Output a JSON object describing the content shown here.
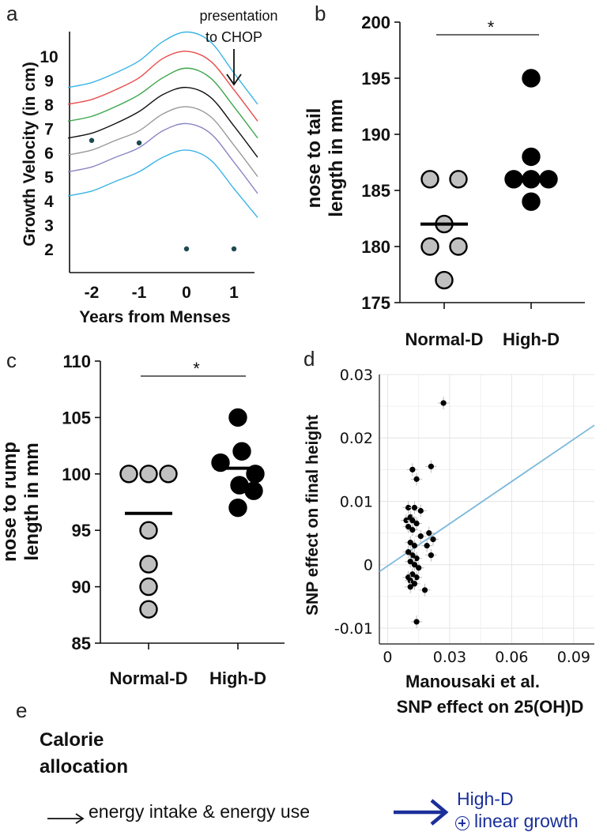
{
  "panels": {
    "a": "a",
    "b": "b",
    "c": "c",
    "d": "d",
    "e": "e"
  },
  "chart_data": [
    {
      "id": "a",
      "type": "line",
      "xlabel": "Years from Menses",
      "ylabel": "Growth Velocity (in cm)",
      "xticks": [
        "-2",
        "-1",
        "0",
        "1"
      ],
      "yticks": [
        "2",
        "3",
        "4",
        "5",
        "6",
        "7",
        "8",
        "9",
        "10"
      ],
      "x": [
        -2.5,
        -2.0,
        -1.5,
        -1.0,
        -0.5,
        0.0,
        0.5,
        1.0,
        1.5
      ],
      "series": [
        {
          "name": "curve-1",
          "color": "#3ab4e6",
          "values": [
            4.2,
            4.4,
            4.8,
            5.2,
            5.8,
            6.1,
            5.7,
            4.5,
            3.3
          ]
        },
        {
          "name": "curve-2",
          "color": "#8a86c4",
          "values": [
            5.2,
            5.4,
            5.8,
            6.2,
            6.9,
            7.2,
            6.8,
            5.6,
            4.3
          ]
        },
        {
          "name": "curve-3",
          "color": "#999999",
          "values": [
            5.9,
            6.1,
            6.5,
            6.9,
            7.6,
            7.9,
            7.5,
            6.3,
            5.0
          ]
        },
        {
          "name": "curve-4",
          "color": "#111111",
          "values": [
            6.6,
            6.8,
            7.2,
            7.7,
            8.4,
            8.7,
            8.3,
            7.1,
            5.8
          ]
        },
        {
          "name": "curve-5",
          "color": "#3aa64a",
          "values": [
            7.3,
            7.5,
            7.9,
            8.4,
            9.1,
            9.5,
            9.1,
            7.9,
            6.6
          ]
        },
        {
          "name": "curve-6",
          "color": "#e94a4a",
          "values": [
            8.0,
            8.2,
            8.6,
            9.1,
            9.9,
            10.2,
            9.8,
            8.6,
            7.3
          ]
        },
        {
          "name": "curve-7",
          "color": "#3ab4e6",
          "values": [
            8.7,
            8.9,
            9.3,
            9.8,
            10.6,
            11.0,
            10.6,
            9.3,
            8.0
          ]
        }
      ],
      "points": [
        {
          "x": -2.0,
          "y": 6.5
        },
        {
          "x": -1.0,
          "y": 6.4
        },
        {
          "x": 0.0,
          "y": 2.0
        },
        {
          "x": 1.0,
          "y": 2.0
        }
      ],
      "annotation": {
        "line1": "presentation",
        "line2": "to CHOP",
        "x": 1.0
      }
    },
    {
      "id": "b",
      "type": "scatter",
      "ylabel_line1": "nose to tail",
      "ylabel_line2": "length in mm",
      "categories": [
        "Normal-D",
        "High-D"
      ],
      "yticks": [
        "175",
        "180",
        "185",
        "190",
        "195",
        "200"
      ],
      "ylim": [
        175,
        200
      ],
      "groups": [
        {
          "name": "Normal-D",
          "color": "#c0c0c0",
          "median": 182,
          "points": [
            {
              "dx": -0.18,
              "y": 186
            },
            {
              "dx": 0.18,
              "y": 186
            },
            {
              "dx": 0,
              "y": 182
            },
            {
              "dx": -0.18,
              "y": 180
            },
            {
              "dx": 0.18,
              "y": 180
            },
            {
              "dx": 0,
              "y": 177
            }
          ]
        },
        {
          "name": "High-D",
          "color": "#000000",
          "median": 186,
          "points": [
            {
              "dx": 0,
              "y": 195
            },
            {
              "dx": 0,
              "y": 188
            },
            {
              "dx": -0.22,
              "y": 186
            },
            {
              "dx": 0,
              "y": 186
            },
            {
              "dx": 0.22,
              "y": 186
            },
            {
              "dx": 0,
              "y": 184
            }
          ]
        }
      ],
      "significance": "*"
    },
    {
      "id": "c",
      "type": "scatter",
      "ylabel_line1": "nose to rump",
      "ylabel_line2": "length in mm",
      "categories": [
        "Normal-D",
        "High-D"
      ],
      "yticks": [
        "85",
        "90",
        "95",
        "100",
        "105",
        "110"
      ],
      "ylim": [
        85,
        110
      ],
      "groups": [
        {
          "name": "Normal-D",
          "color": "#c0c0c0",
          "median": 96.5,
          "points": [
            {
              "dx": -0.25,
              "y": 100
            },
            {
              "dx": 0,
              "y": 100
            },
            {
              "dx": 0.25,
              "y": 100
            },
            {
              "dx": 0,
              "y": 95
            },
            {
              "dx": 0,
              "y": 92
            },
            {
              "dx": 0,
              "y": 90
            },
            {
              "dx": 0,
              "y": 88
            }
          ]
        },
        {
          "name": "High-D",
          "color": "#000000",
          "median": 100.5,
          "points": [
            {
              "dx": 0,
              "y": 105
            },
            {
              "dx": 0.05,
              "y": 102
            },
            {
              "dx": -0.22,
              "y": 101
            },
            {
              "dx": 0.22,
              "y": 100
            },
            {
              "dx": 0.02,
              "y": 99
            },
            {
              "dx": 0.2,
              "y": 98.5
            },
            {
              "dx": 0,
              "y": 97
            }
          ]
        }
      ],
      "significance": "*"
    },
    {
      "id": "d",
      "type": "scatter",
      "ylabel": "SNP effect on final height",
      "xlabel_line1": "Manousaki et al.",
      "xlabel_line2": "SNP effect on 25(OH)D",
      "xticks": [
        "0",
        "0.03",
        "0.06",
        "0.09"
      ],
      "yticks": [
        "-0.01",
        "0",
        "0.01",
        "0.02",
        "0.03"
      ],
      "xlim": [
        -0.004,
        0.1
      ],
      "ylim": [
        -0.0125,
        0.03
      ],
      "fit_line": {
        "slope": 0.222,
        "intercept": -0.0002,
        "color": "#7ab8dc"
      },
      "points": [
        {
          "x": 0.027,
          "y": 0.0255
        },
        {
          "x": 0.021,
          "y": 0.0155
        },
        {
          "x": 0.012,
          "y": 0.015
        },
        {
          "x": 0.014,
          "y": 0.0135
        },
        {
          "x": 0.01,
          "y": 0.009
        },
        {
          "x": 0.013,
          "y": 0.009
        },
        {
          "x": 0.016,
          "y": 0.0085
        },
        {
          "x": 0.011,
          "y": 0.0075
        },
        {
          "x": 0.009,
          "y": 0.007
        },
        {
          "x": 0.012,
          "y": 0.007
        },
        {
          "x": 0.014,
          "y": 0.0065
        },
        {
          "x": 0.01,
          "y": 0.006
        },
        {
          "x": 0.012,
          "y": 0.0055
        },
        {
          "x": 0.02,
          "y": 0.005
        },
        {
          "x": 0.016,
          "y": 0.0045
        },
        {
          "x": 0.022,
          "y": 0.004
        },
        {
          "x": 0.011,
          "y": 0.0035
        },
        {
          "x": 0.013,
          "y": 0.003
        },
        {
          "x": 0.019,
          "y": 0.003
        },
        {
          "x": 0.01,
          "y": 0.002
        },
        {
          "x": 0.012,
          "y": 0.0015
        },
        {
          "x": 0.021,
          "y": 0.0015
        },
        {
          "x": 0.014,
          "y": 0.001
        },
        {
          "x": 0.011,
          "y": 0.0005
        },
        {
          "x": 0.013,
          "y": 0.0
        },
        {
          "x": 0.015,
          "y": -0.0005
        },
        {
          "x": 0.012,
          "y": -0.0015
        },
        {
          "x": 0.01,
          "y": -0.002
        },
        {
          "x": 0.014,
          "y": -0.002
        },
        {
          "x": 0.011,
          "y": -0.0025
        },
        {
          "x": 0.013,
          "y": -0.003
        },
        {
          "x": 0.018,
          "y": -0.004
        },
        {
          "x": 0.011,
          "y": -0.0035
        },
        {
          "x": 0.014,
          "y": -0.009
        }
      ]
    }
  ],
  "panel_e": {
    "title_line1": "Calorie",
    "title_line2": "allocation",
    "text": "energy intake & energy use",
    "result_line1": "High-D",
    "result_line2": "linear growth",
    "result_color": "#1b2f9a"
  }
}
